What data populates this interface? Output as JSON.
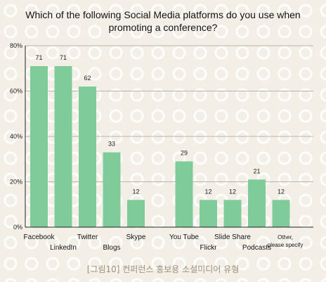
{
  "chart_data": {
    "type": "bar",
    "title_lines": [
      "Which of the following Social Media platforms do you use when",
      "promoting a conference?"
    ],
    "categories": [
      "Facebook",
      "LinkedIn",
      "Twitter",
      "Blogs",
      "Skype",
      "You Tube",
      "Flickr",
      "Slide Share",
      "Podcasts",
      "Other, please specify"
    ],
    "values": [
      71,
      71,
      62,
      33,
      12,
      29,
      12,
      12,
      21,
      12
    ],
    "ylim": [
      0,
      80
    ],
    "yticks": [
      "0%",
      "20%",
      "40%",
      "60%",
      "80%"
    ],
    "ytick_values": [
      0,
      20,
      40,
      60,
      80
    ],
    "grid": true,
    "bar_color": "#7fcc9a"
  },
  "caption": "[그림10] 컨퍼런스 홍보용 소셜미디어 유형"
}
